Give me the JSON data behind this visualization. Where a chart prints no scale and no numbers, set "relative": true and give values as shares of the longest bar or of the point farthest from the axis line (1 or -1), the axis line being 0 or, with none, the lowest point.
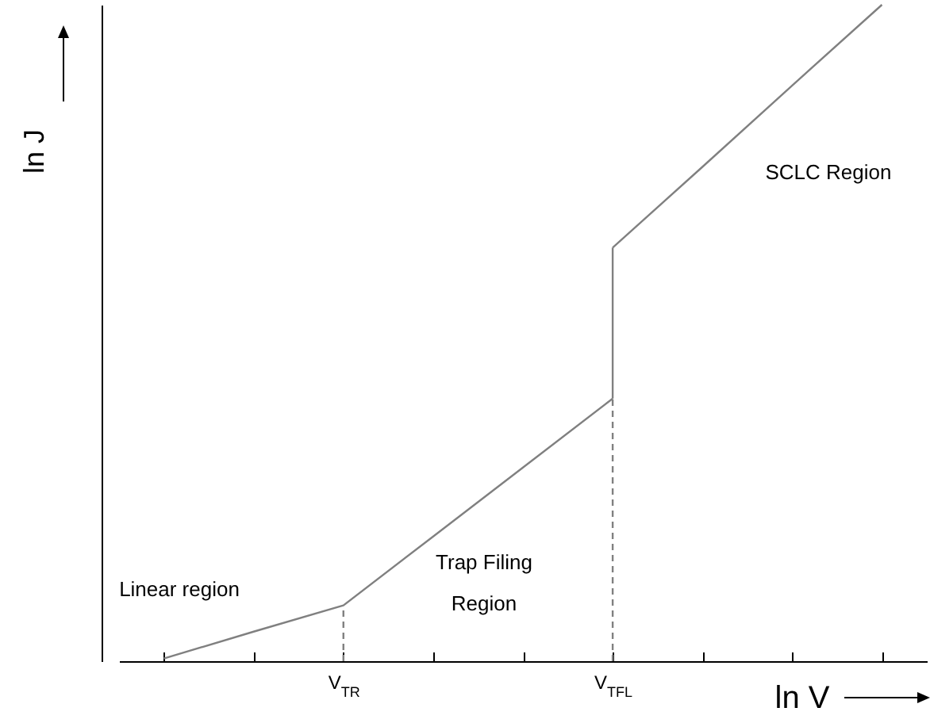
{
  "chart_data": {
    "type": "line",
    "relative": true,
    "xlabel": "ln V",
    "ylabel": "ln J",
    "categories": [
      null,
      null,
      "V$_{TR}$",
      null,
      null,
      "V$_{TFL}$",
      null,
      null,
      null
    ],
    "series": [
      {
        "color": "#808080",
        "values": [
          0.004,
          0.045,
          0.085,
          0.19,
          0.295,
          0.4,
          null,
          null,
          null
        ],
        "line_style": "solid"
      },
      {
        "color": "#808080",
        "x": [
          "V$_{TFL}$",
          "V$_{TFL}$"
        ],
        "values": [
          0.4,
          0.63
        ],
        "line_style": "solid"
      },
      {
        "color": "#808080",
        "values": [
          null,
          null,
          null,
          null,
          null,
          0.63,
          0.753,
          0.877,
          1
        ],
        "line_style": "solid"
      },
      {
        "color": "#808080",
        "x": [
          "V$_{TR}$",
          "V$_{TR}$"
        ],
        "values": [
          0,
          0.085
        ],
        "line_style": "dashed"
      },
      {
        "color": "#808080",
        "x": [
          "V$_{TFL}$",
          "V$_{TFL}$"
        ],
        "values": [
          0,
          0.4
        ],
        "line_style": "dashed"
      }
    ],
    "annotations": [
      "Linear region",
      "Trap Filing\nRegion",
      "SCLC Region"
    ]
  }
}
